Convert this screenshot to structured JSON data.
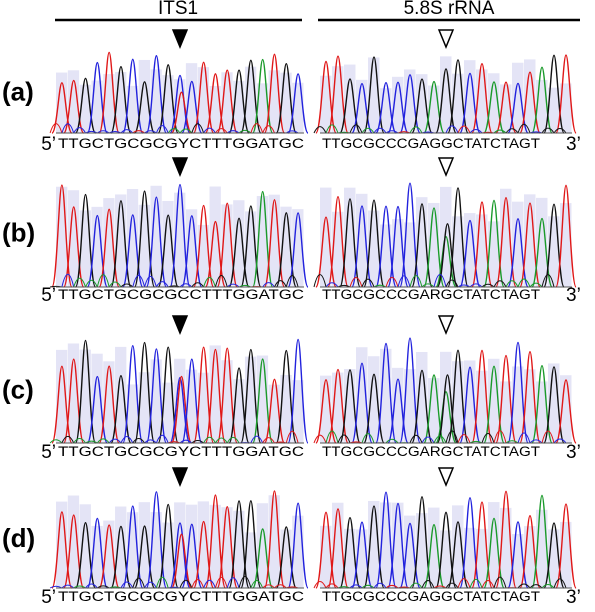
{
  "headers": [
    "ITS1",
    "5.8S rRNA"
  ],
  "rows": [
    {
      "label": "(a)",
      "left": {
        "prime": "5’",
        "sequence": "TTGCTGCGCGYCTTTGGATGC"
      },
      "right": {
        "sequence": "TTGCGCCCGAGGCTATCTAGT",
        "prime": "3’"
      }
    },
    {
      "label": "(b)",
      "left": {
        "prime": "5’",
        "sequence": "TTGCTGCGCGCCTTTGGATGC"
      },
      "right": {
        "sequence": "TTGCGCCCGARGCTATCTAGT",
        "prime": "3’"
      }
    },
    {
      "label": "(c)",
      "left": {
        "prime": "5’",
        "sequence": "TTGCTGCGCGYCTTTGGATGC"
      },
      "right": {
        "sequence": "TTGCGCCCGARGCTATCTAGT",
        "prime": "3’"
      }
    },
    {
      "label": "(d)",
      "left": {
        "prime": "5’",
        "sequence": "TTGCTGCGCGYCTTTGGATGC"
      },
      "right": {
        "sequence": "TTGCGCCCGAGGCTATCTAGT",
        "prime": "3’"
      }
    }
  ]
}
